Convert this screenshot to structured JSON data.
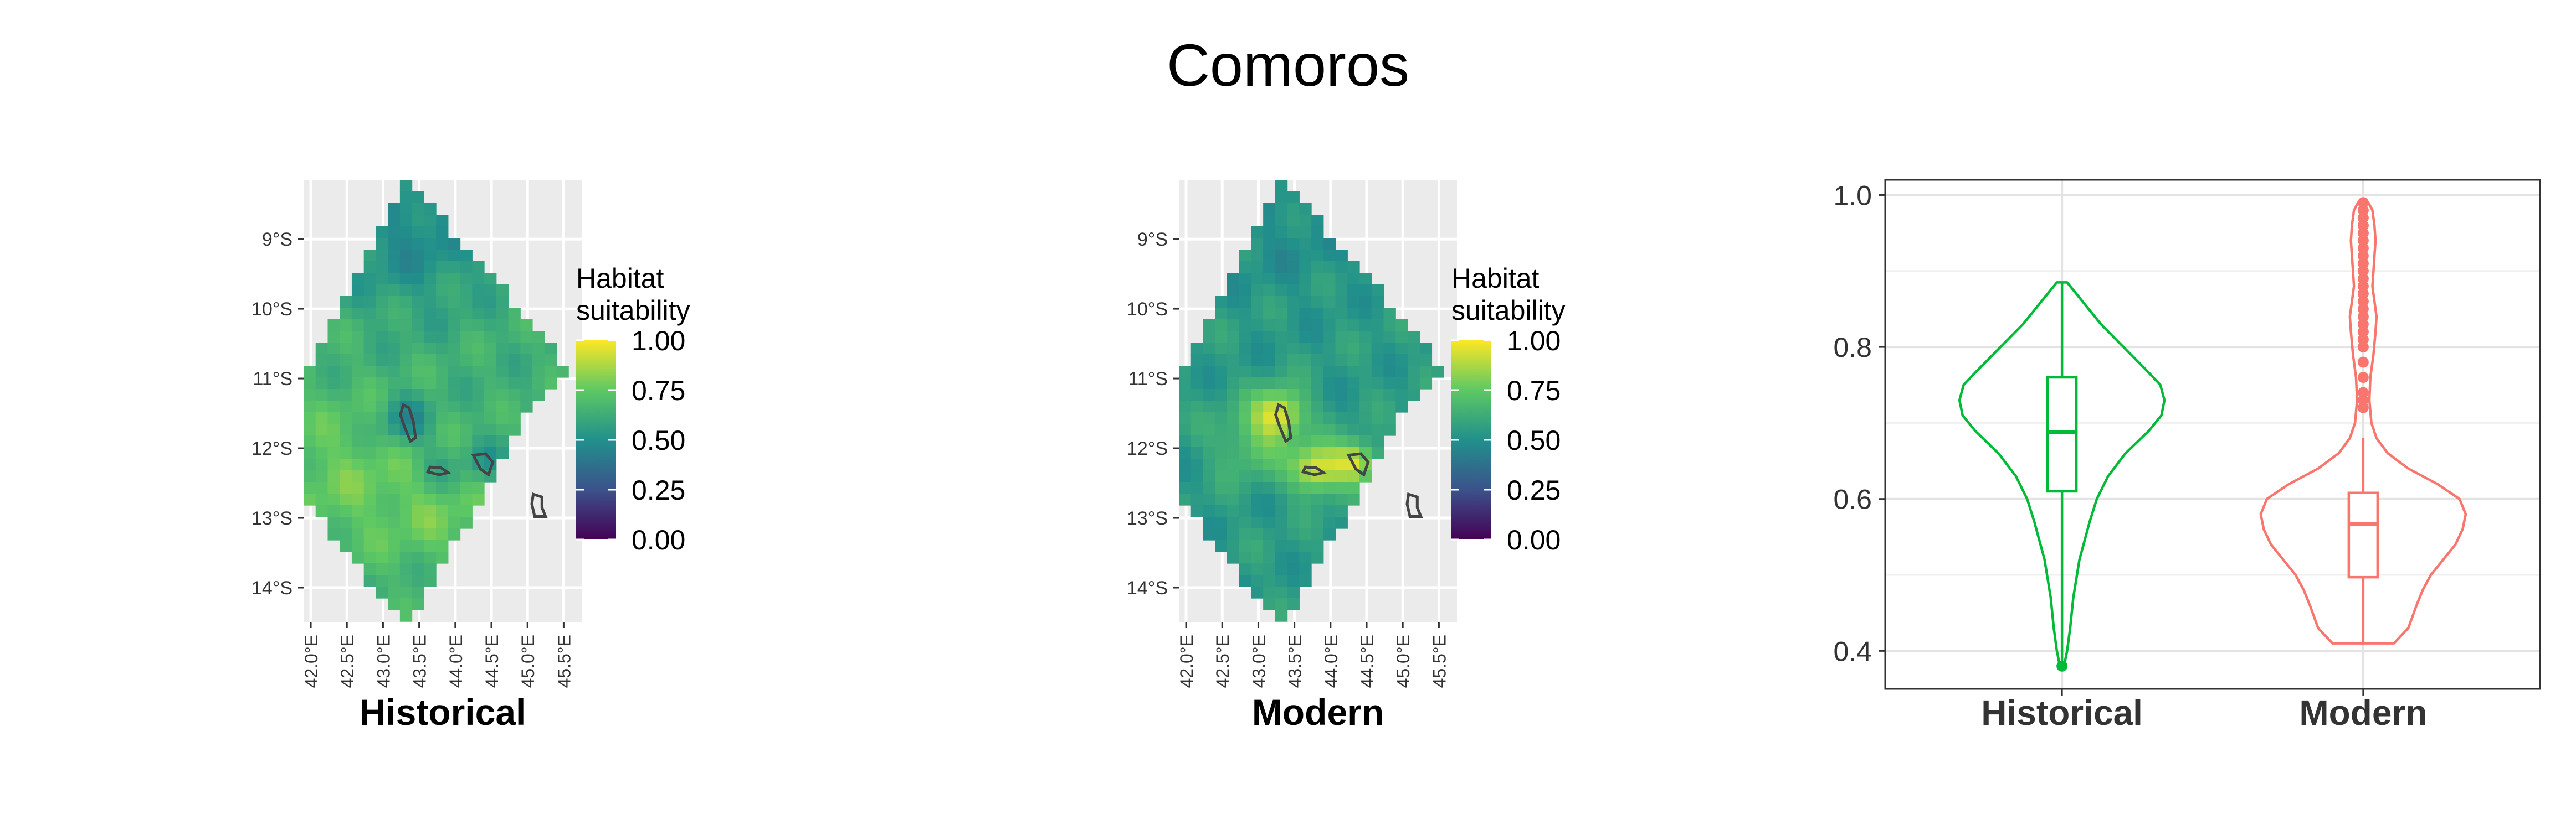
{
  "title": "Comoros",
  "colors": {
    "panel_bg": "#EBEBEB",
    "grid": "#FFFFFF",
    "island_outline": "#444444",
    "historical": "#00BA38",
    "modern": "#F8766D",
    "viridis": [
      "#440154",
      "#3B528B",
      "#21908C",
      "#5DC863",
      "#FDE725"
    ]
  },
  "chart_data": [
    {
      "type": "heatmap",
      "panel_label": "Historical",
      "legend_title": [
        "Habitat",
        "suitability"
      ],
      "legend_ticks": [
        "1.00",
        "0.75",
        "0.50",
        "0.25",
        "0.00"
      ],
      "legend_range": [
        0,
        1
      ],
      "x_ticks": [
        "42.0°E",
        "42.5°E",
        "43.0°E",
        "43.5°E",
        "44.0°E",
        "44.5°E",
        "45.0°E",
        "45.5°E"
      ],
      "y_ticks": [
        "9°S",
        "10°S",
        "11°S",
        "12°S",
        "13°S",
        "14°S"
      ],
      "xlim": [
        41.9,
        45.75
      ],
      "ylim": [
        -14.5,
        -8.15
      ],
      "base_value": 0.64,
      "hotspots": [
        {
          "lon": 43.3,
          "lat": -11.6,
          "amp": -0.2,
          "r": 0.35
        },
        {
          "lon": 43.75,
          "lat": -12.3,
          "amp": -0.1,
          "r": 0.35
        },
        {
          "lon": 44.4,
          "lat": -12.2,
          "amp": -0.12,
          "r": 0.3
        },
        {
          "lon": 43.4,
          "lat": -8.9,
          "amp": -0.16,
          "r": 1.1
        },
        {
          "lon": 42.4,
          "lat": -12.4,
          "amp": 0.12,
          "r": 1.2
        },
        {
          "lon": 43.8,
          "lat": -12.9,
          "amp": 0.1,
          "r": 0.8
        }
      ]
    },
    {
      "type": "heatmap",
      "panel_label": "Modern",
      "legend_title": [
        "Habitat",
        "suitability"
      ],
      "legend_ticks": [
        "1.00",
        "0.75",
        "0.50",
        "0.25",
        "0.00"
      ],
      "legend_range": [
        0,
        1
      ],
      "x_ticks": [
        "42.0°E",
        "42.5°E",
        "43.0°E",
        "43.5°E",
        "44.0°E",
        "44.5°E",
        "45.0°E",
        "45.5°E"
      ],
      "y_ticks": [
        "9°S",
        "10°S",
        "11°S",
        "12°S",
        "13°S",
        "14°S"
      ],
      "xlim": [
        41.9,
        45.75
      ],
      "ylim": [
        -14.5,
        -8.15
      ],
      "base_value": 0.55,
      "hotspots": [
        {
          "lon": 43.3,
          "lat": -11.5,
          "amp": 0.4,
          "r": 0.35
        },
        {
          "lon": 43.8,
          "lat": -12.3,
          "amp": 0.42,
          "r": 0.35
        },
        {
          "lon": 44.35,
          "lat": -12.2,
          "amp": 0.38,
          "r": 0.3
        },
        {
          "lon": 42.9,
          "lat": -11.9,
          "amp": 0.18,
          "r": 0.5
        },
        {
          "lon": 43.4,
          "lat": -8.9,
          "amp": -0.05,
          "r": 1.0
        }
      ]
    },
    {
      "type": "violin",
      "categories": [
        "Historical",
        "Modern"
      ],
      "y_ticks": [
        "0.4",
        "0.6",
        "0.8",
        "1.0"
      ],
      "ylim": [
        0.35,
        1.02
      ],
      "series": [
        {
          "name": "Historical",
          "range": [
            0.38,
            0.885
          ],
          "box": {
            "q1": 0.61,
            "median": 0.688,
            "q3": 0.76,
            "whisker_low": 0.38,
            "whisker_high": 0.885
          },
          "outliers": [
            0.38
          ],
          "density": [
            [
              0.38,
              0.02
            ],
            [
              0.4,
              0.05
            ],
            [
              0.43,
              0.08
            ],
            [
              0.47,
              0.11
            ],
            [
              0.52,
              0.17
            ],
            [
              0.57,
              0.27
            ],
            [
              0.6,
              0.34
            ],
            [
              0.63,
              0.45
            ],
            [
              0.66,
              0.62
            ],
            [
              0.69,
              0.85
            ],
            [
              0.71,
              0.97
            ],
            [
              0.73,
              1.0
            ],
            [
              0.75,
              0.96
            ],
            [
              0.77,
              0.82
            ],
            [
              0.8,
              0.6
            ],
            [
              0.83,
              0.38
            ],
            [
              0.86,
              0.2
            ],
            [
              0.885,
              0.05
            ]
          ]
        },
        {
          "name": "Modern",
          "range": [
            0.41,
            0.99
          ],
          "box": {
            "q1": 0.497,
            "median": 0.567,
            "q3": 0.608,
            "whisker_low": 0.41,
            "whisker_high": 0.68
          },
          "outliers": [
            0.72,
            0.73,
            0.74,
            0.76,
            0.78,
            0.8,
            0.81,
            0.82,
            0.83,
            0.84,
            0.85,
            0.86,
            0.87,
            0.88,
            0.89,
            0.9,
            0.91,
            0.92,
            0.93,
            0.94,
            0.95,
            0.96,
            0.97,
            0.98,
            0.99
          ],
          "density": [
            [
              0.41,
              0.3
            ],
            [
              0.43,
              0.44
            ],
            [
              0.46,
              0.52
            ],
            [
              0.48,
              0.58
            ],
            [
              0.5,
              0.66
            ],
            [
              0.52,
              0.78
            ],
            [
              0.54,
              0.9
            ],
            [
              0.56,
              0.97
            ],
            [
              0.58,
              1.0
            ],
            [
              0.6,
              0.94
            ],
            [
              0.62,
              0.72
            ],
            [
              0.64,
              0.44
            ],
            [
              0.66,
              0.24
            ],
            [
              0.68,
              0.13
            ],
            [
              0.7,
              0.08
            ],
            [
              0.73,
              0.06
            ],
            [
              0.76,
              0.07
            ],
            [
              0.79,
              0.1
            ],
            [
              0.82,
              0.12
            ],
            [
              0.84,
              0.13
            ],
            [
              0.86,
              0.11
            ],
            [
              0.88,
              0.09
            ],
            [
              0.9,
              0.1
            ],
            [
              0.92,
              0.11
            ],
            [
              0.94,
              0.12
            ],
            [
              0.96,
              0.11
            ],
            [
              0.98,
              0.09
            ],
            [
              0.99,
              0.05
            ]
          ]
        }
      ]
    }
  ]
}
